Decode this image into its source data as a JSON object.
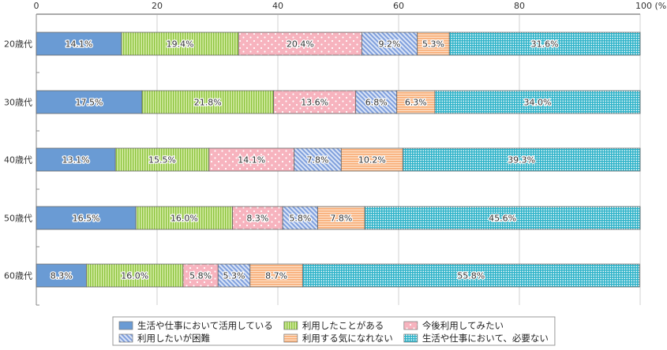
{
  "chart_data": {
    "type": "bar",
    "orientation": "horizontal",
    "stacked": true,
    "title": "",
    "xlabel": "",
    "ylabel": "",
    "xlim": [
      0,
      100
    ],
    "x_ticks": [
      "0",
      "20",
      "40",
      "60",
      "80",
      "100 (%)"
    ],
    "x_tick_values": [
      0,
      20,
      40,
      60,
      80,
      100
    ],
    "grid": true,
    "legend_position": "bottom",
    "categories": [
      "20歳代",
      "30歳代",
      "40歳代",
      "50歳代",
      "60歳代"
    ],
    "series": [
      {
        "name": "生活や仕事において活用している",
        "pattern": "solid",
        "color": "#6a9bd4",
        "values": [
          14.1,
          17.5,
          13.1,
          16.5,
          8.3
        ],
        "labels": [
          "14.1%",
          "17.5%",
          "13.1%",
          "16.5%",
          "8.3%"
        ]
      },
      {
        "name": "利用したことがある",
        "pattern": "vertical-stripes",
        "color": "#a9d15f",
        "values": [
          19.4,
          21.8,
          15.5,
          16.0,
          16.0
        ],
        "labels": [
          "19.4%",
          "21.8%",
          "15.5%",
          "16.0%",
          "16.0%"
        ]
      },
      {
        "name": "今後利用してみたい",
        "pattern": "dots",
        "color": "#f7b3be",
        "values": [
          20.4,
          13.6,
          14.1,
          8.3,
          5.8
        ],
        "labels": [
          "20.4%",
          "13.6%",
          "14.1%",
          "8.3%",
          "5.8%"
        ]
      },
      {
        "name": "利用したいが困難",
        "pattern": "diagonal-stripes",
        "color": "#8aa8e0",
        "values": [
          9.2,
          6.8,
          7.8,
          5.8,
          5.3
        ],
        "labels": [
          "9.2%",
          "6.8%",
          "7.8%",
          "5.8%",
          "5.3%"
        ]
      },
      {
        "name": "利用する気になれない",
        "pattern": "horizontal-stripes",
        "color": "#f9b27e",
        "values": [
          5.3,
          6.3,
          10.2,
          7.8,
          8.7
        ],
        "labels": [
          "5.3%",
          "6.3%",
          "10.2%",
          "7.8%",
          "8.7%"
        ]
      },
      {
        "name": "生活や仕事において、必要ない",
        "pattern": "grid",
        "color": "#2fb3c9",
        "values": [
          31.6,
          34.0,
          39.3,
          45.6,
          55.8
        ],
        "labels": [
          "31.6%",
          "34.0%",
          "39.3%",
          "45.6%",
          "55.8%"
        ]
      }
    ],
    "legend_order": [
      0,
      1,
      2,
      3,
      4,
      5
    ]
  }
}
